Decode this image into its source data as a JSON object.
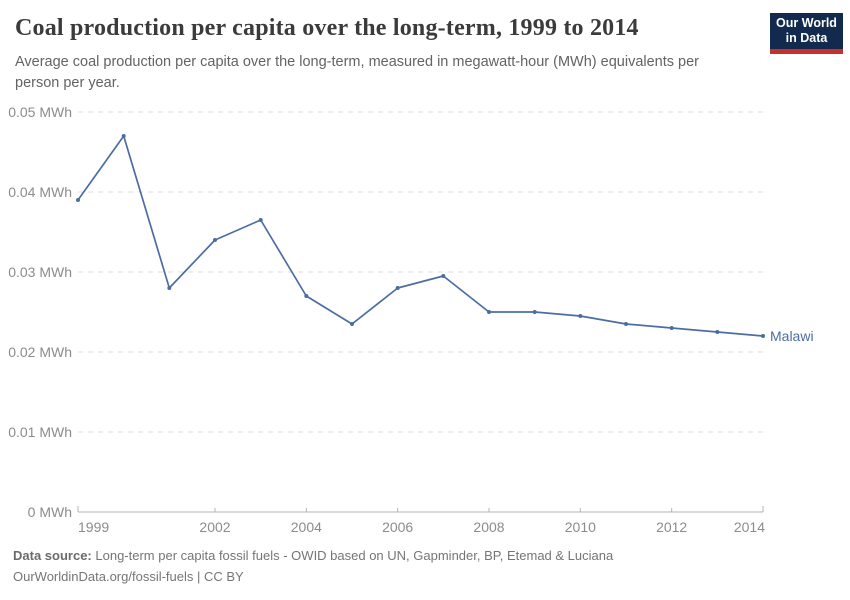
{
  "header": {
    "title": "Coal production per capita over the long-term, 1999 to 2014",
    "subtitle": "Average coal production per capita over the long-term, measured in megawatt-hour (MWh) equivalents per person per year.",
    "logo": {
      "line1": "Our World",
      "line2": "in Data"
    }
  },
  "chart_data": {
    "type": "line",
    "title": "Coal production per capita over the long-term, 1999 to 2014",
    "unit": "MWh",
    "x": [
      1999,
      2000,
      2001,
      2002,
      2003,
      2004,
      2005,
      2006,
      2007,
      2008,
      2009,
      2010,
      2011,
      2012,
      2013,
      2014
    ],
    "series": [
      {
        "name": "Malawi",
        "color": "#4c6da4",
        "values": [
          0.039,
          0.047,
          0.028,
          0.034,
          0.0365,
          0.027,
          0.0235,
          0.028,
          0.0295,
          0.025,
          0.025,
          0.0245,
          0.0235,
          0.023,
          0.0225,
          0.022
        ]
      }
    ],
    "xlim": [
      1999,
      2014
    ],
    "ylim": [
      0,
      0.05
    ],
    "x_ticks": [
      1999,
      2002,
      2004,
      2006,
      2008,
      2010,
      2012,
      2014
    ],
    "y_ticks": [
      {
        "value": 0,
        "label": "0 MWh"
      },
      {
        "value": 0.01,
        "label": "0.01 MWh"
      },
      {
        "value": 0.02,
        "label": "0.02 MWh"
      },
      {
        "value": 0.03,
        "label": "0.03 MWh"
      },
      {
        "value": 0.04,
        "label": "0.04 MWh"
      },
      {
        "value": 0.05,
        "label": "0.05 MWh"
      }
    ],
    "grid": true,
    "legend_position": "line-end-label"
  },
  "footer": {
    "datasource_label": "Data source:",
    "datasource_text": "Long-term per capita fossil fuels - OWID based on UN, Gapminder, BP, Etemad & Luciana",
    "url_line": "OurWorldinData.org/fossil-fuels | CC BY"
  },
  "colors": {
    "line": "#4c6da4",
    "logo_bg": "#112a4d",
    "logo_stripe": "#c5322d",
    "gridline": "#dcdcdc",
    "axis": "#b3b3b3",
    "tick_text": "#8c8c8c",
    "title_text": "#3b3b3b",
    "subtitle_text": "#636363",
    "footer_text": "#757575"
  }
}
